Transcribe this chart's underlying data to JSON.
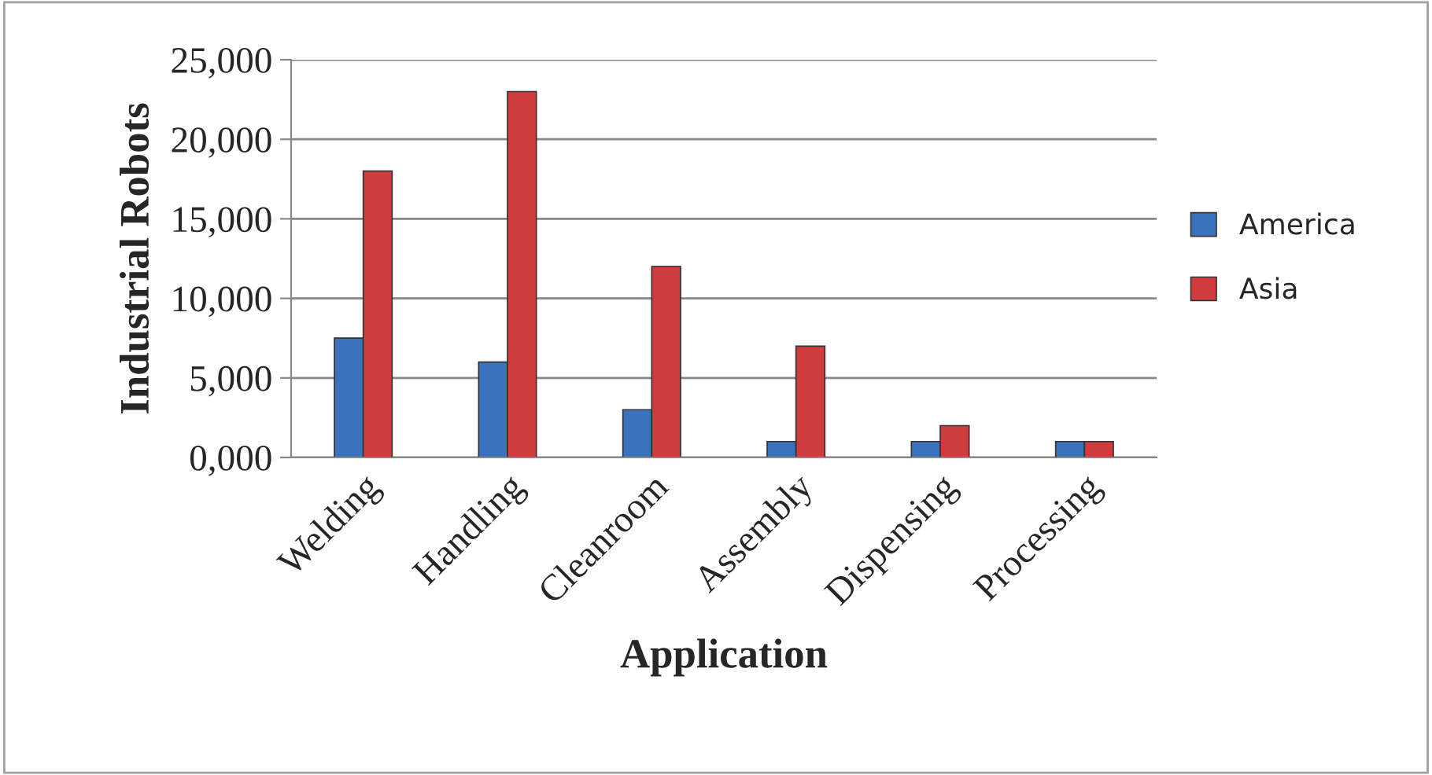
{
  "chart_data": {
    "type": "bar",
    "xlabel": "Application",
    "ylabel": "Industrial Robots",
    "categories": [
      "Welding",
      "Handling",
      "Cleanroom",
      "Assembly",
      "Dispensing",
      "Processing"
    ],
    "series": [
      {
        "name": "America",
        "color": "#3a72be",
        "values": [
          7500,
          6000,
          3000,
          1000,
          1000,
          1000
        ]
      },
      {
        "name": "Asia",
        "color": "#cf3c3c",
        "values": [
          18000,
          23000,
          12000,
          7000,
          2000,
          1000
        ]
      }
    ],
    "ylim": [
      0,
      25000
    ],
    "yticks": [
      {
        "value": 0,
        "label": "0,000"
      },
      {
        "value": 5000,
        "label": "5,000"
      },
      {
        "value": 10000,
        "label": "10,000"
      },
      {
        "value": 15000,
        "label": "15,000"
      },
      {
        "value": 20000,
        "label": "20,000"
      },
      {
        "value": 25000,
        "label": "25,000"
      }
    ],
    "grid": "y",
    "legend": "right"
  }
}
